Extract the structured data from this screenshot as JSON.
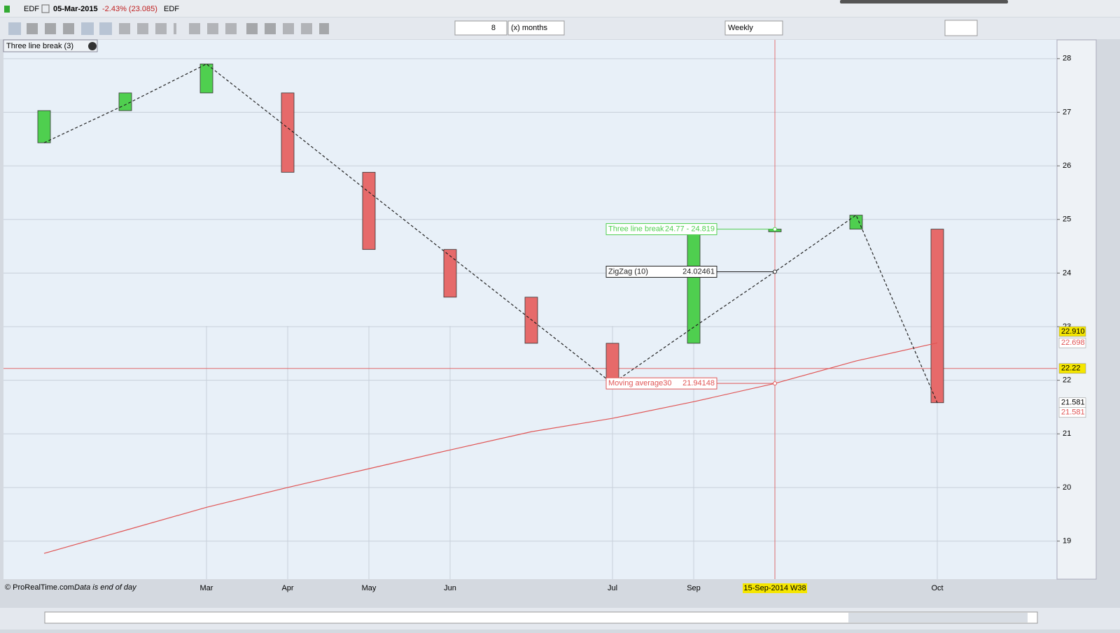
{
  "header": {
    "symbol": "EDF",
    "date": "05-Mar-2015",
    "change": "-2.43% (23.085)",
    "exchange": "EDF"
  },
  "toolbar": {
    "period": "8",
    "unit": "(x) months",
    "timeframe": "Weekly"
  },
  "indicator_label": "Three line break (3)",
  "footer": {
    "copyright": "© ProRealTime.com",
    "note": "Data is end of day"
  },
  "chart_data": {
    "type": "three-line-break",
    "categories": [
      null,
      null,
      "Mar",
      "Apr",
      "May",
      "Jun",
      null,
      "Jul",
      "Sep",
      "15-Sep-2014 W38",
      null,
      "Oct"
    ],
    "bricks": [
      {
        "open": 26.43,
        "close": 27.03
      },
      {
        "open": 27.03,
        "close": 27.36
      },
      {
        "open": 27.36,
        "close": 27.9
      },
      {
        "open": 27.36,
        "close": 25.88
      },
      {
        "open": 25.88,
        "close": 24.44
      },
      {
        "open": 24.44,
        "close": 23.55
      },
      {
        "open": 23.55,
        "close": 22.69
      },
      {
        "open": 22.69,
        "close": 21.89
      },
      {
        "open": 22.69,
        "close": 24.77
      },
      {
        "open": 24.77,
        "close": 24.819
      },
      {
        "open": 24.819,
        "close": 25.08
      },
      {
        "open": 24.819,
        "close": 21.581
      }
    ],
    "up_color": "#4fcf4f",
    "down_color": "#e66a6a",
    "zigzag": {
      "name": "ZigZag (10)",
      "color": "#222222",
      "values": [
        26.43,
        27.14,
        27.9,
        26.71,
        25.51,
        24.32,
        23.13,
        21.94,
        22.99,
        24.02461,
        25.08,
        21.58
      ]
    },
    "moving_average": {
      "name": "Moving average30",
      "color": "#e05555",
      "values": [
        18.77,
        19.2,
        19.63,
        20.0,
        20.35,
        20.7,
        21.04,
        21.29,
        21.6,
        21.94148,
        22.36,
        22.698
      ]
    },
    "annotations": [
      {
        "name": "Three line break",
        "text": "24.77 - 24.819",
        "color": "#4fcf4f"
      },
      {
        "name": "ZigZag (10)",
        "text": "24.02461",
        "color": "#222222"
      },
      {
        "name": "Moving average30",
        "text": "21.94148",
        "color": "#e05555"
      }
    ],
    "crosshair": {
      "category": "15-Sep-2014 W38",
      "value": 22.22
    },
    "price_labels": [
      {
        "value": 22.91,
        "label": "22.910",
        "bg": "#f5e600",
        "fg": "#000000"
      },
      {
        "value": 22.698,
        "label": "22.698",
        "bg": "#ffffff",
        "fg": "#e05555"
      },
      {
        "value": 22.22,
        "label": "22.22",
        "bg": "#f5e600",
        "fg": "#000000"
      },
      {
        "value": 21.581,
        "label": "21.581",
        "bg": "#ffffff",
        "fg": "#000000"
      },
      {
        "value": 21.581,
        "label": "21.581",
        "bg": "#ffffff",
        "fg": "#e05555"
      }
    ],
    "ylim": [
      18.29,
      28.35
    ],
    "yticks": [
      19,
      20,
      21,
      22,
      23,
      24,
      25,
      26,
      27,
      28
    ],
    "grid": true
  }
}
